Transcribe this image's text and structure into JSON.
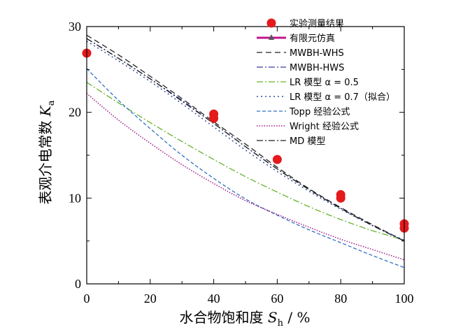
{
  "chart_data": {
    "type": "line",
    "ylabel_prefix": "表观介电常数 ",
    "ylabel_symbol": "K",
    "ylabel_subscript": "a",
    "xlabel_prefix": "水合物饱和度 ",
    "xlabel_symbol": "S",
    "xlabel_subscript": "h",
    "xlabel_suffix": " / %",
    "xlim": [
      0,
      100
    ],
    "ylim": [
      0,
      30
    ],
    "xticks": [
      "0",
      "20",
      "40",
      "60",
      "80",
      "100"
    ],
    "yticks": [
      "0",
      "10",
      "20",
      "30"
    ],
    "legend_position": "top-right",
    "measured": {
      "name": "实验测量结果",
      "color": "#e41a1c",
      "points": [
        {
          "x": 0,
          "y": 26.9
        },
        {
          "x": 40,
          "y": 19.8
        },
        {
          "x": 40,
          "y": 19.3
        },
        {
          "x": 60,
          "y": 14.5
        },
        {
          "x": 80,
          "y": 10.4
        },
        {
          "x": 80,
          "y": 10.0
        },
        {
          "x": 100,
          "y": 7.0
        },
        {
          "x": 100,
          "y": 6.5
        }
      ]
    },
    "series": [
      {
        "name": "有限元仿真",
        "color": "#c0158f",
        "dash": "solid",
        "width": 3,
        "marker": "triangle",
        "x": [],
        "y": []
      },
      {
        "name": "MWBH-WHS",
        "color": "#222222",
        "dash": "8,5",
        "width": 1.3,
        "x": [
          0,
          10,
          20,
          30,
          40,
          50,
          60,
          70,
          80,
          90,
          100
        ],
        "y": [
          29.0,
          26.7,
          24.2,
          21.6,
          18.9,
          16.3,
          13.6,
          11.1,
          8.9,
          6.9,
          5.0
        ]
      },
      {
        "name": "MWBH-HWS",
        "color": "#3a3a9a",
        "dash": "9,3,2,3",
        "width": 1.3,
        "x": [
          0,
          10,
          20,
          30,
          40,
          50,
          60,
          70,
          80,
          90,
          100
        ],
        "y": [
          28.6,
          26.3,
          23.9,
          21.4,
          18.7,
          16.0,
          13.4,
          11.0,
          8.8,
          6.8,
          5.0
        ]
      },
      {
        "name": "LR 模型 α = 0.5",
        "color": "#66b32e",
        "dash": "9,3,2,3",
        "width": 1.3,
        "x": [
          0,
          10,
          20,
          30,
          40,
          50,
          60,
          70,
          80,
          90,
          100
        ],
        "y": [
          23.5,
          21.1,
          18.8,
          16.6,
          14.5,
          12.5,
          10.7,
          9.0,
          7.5,
          6.2,
          5.1
        ]
      },
      {
        "name": "LR 模型 α = 0.7（拟合）",
        "color": "#2f4fa0",
        "dash": "2,4",
        "width": 1.5,
        "x": [
          0,
          10,
          20,
          30,
          40,
          50,
          60,
          70,
          80,
          90,
          100
        ],
        "y": [
          28.3,
          26.0,
          23.6,
          21.0,
          18.3,
          15.6,
          13.1,
          10.8,
          8.7,
          6.8,
          5.1
        ]
      },
      {
        "name": "Topp 经验公式",
        "color": "#2f72c2",
        "dash": "5,3",
        "width": 1.3,
        "x": [
          0,
          10,
          20,
          30,
          40,
          50,
          60,
          70,
          80,
          90,
          100
        ],
        "y": [
          25.1,
          21.4,
          18.1,
          15.0,
          12.3,
          9.9,
          8.0,
          6.3,
          4.8,
          3.3,
          1.9
        ]
      },
      {
        "name": "Wright 经验公式",
        "color": "#a01a8a",
        "dash": "1.5,2",
        "width": 1.5,
        "x": [
          0,
          10,
          20,
          30,
          40,
          50,
          60,
          70,
          80,
          90,
          100
        ],
        "y": [
          22.2,
          19.1,
          16.4,
          13.9,
          11.7,
          9.7,
          8.1,
          6.6,
          5.2,
          4.0,
          2.8
        ]
      },
      {
        "name": "MD 模型",
        "color": "#222222",
        "dash": "9,3,2,3",
        "width": 1.3,
        "x": [
          0,
          10,
          20,
          30,
          40,
          50,
          60,
          70,
          80,
          90,
          100
        ],
        "y": [
          28.6,
          26.3,
          23.9,
          21.3,
          18.7,
          16.0,
          13.4,
          11.0,
          8.8,
          6.8,
          5.0
        ]
      }
    ]
  }
}
